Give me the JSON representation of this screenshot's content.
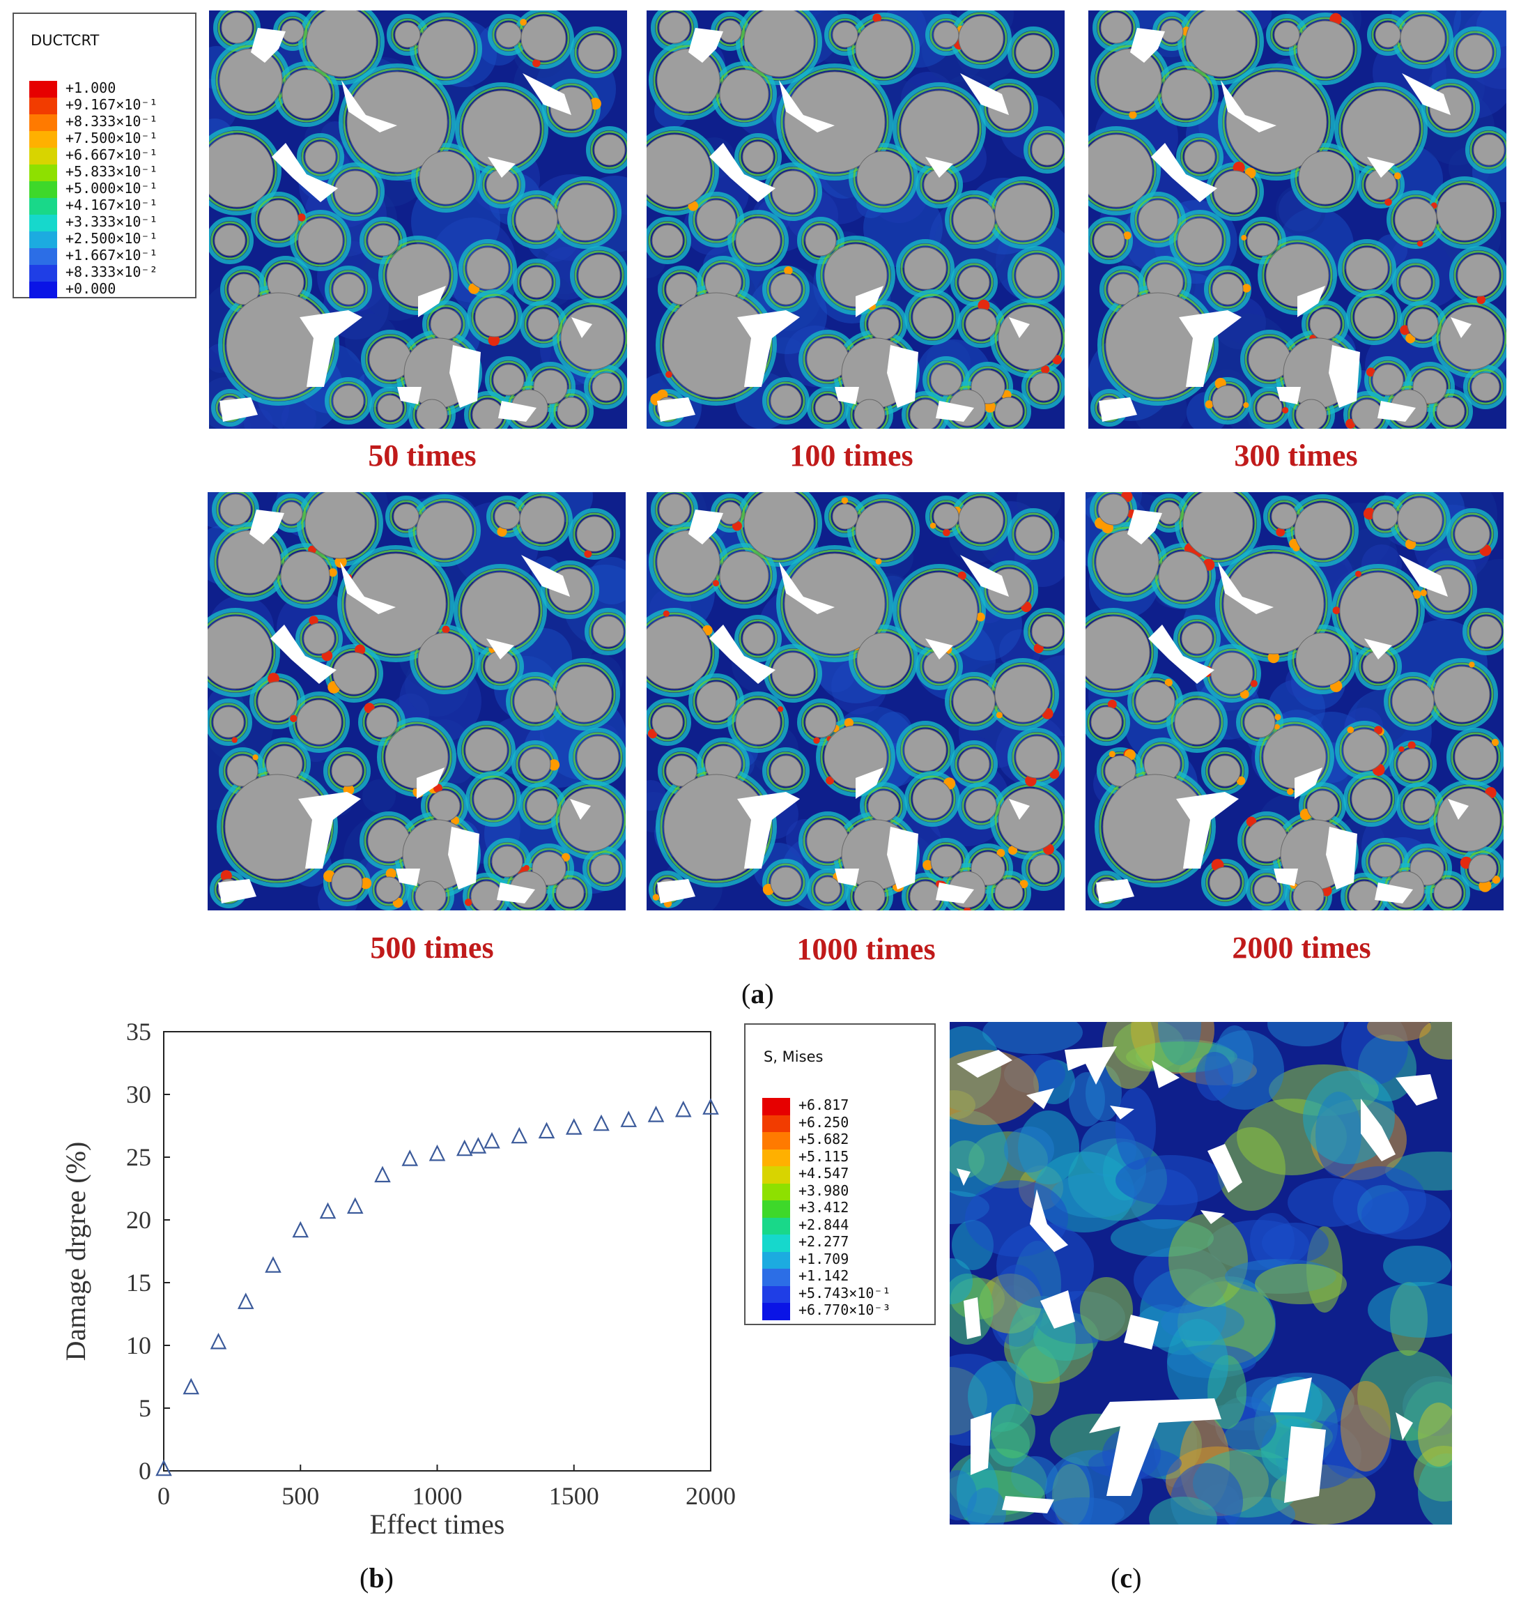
{
  "legend_a": {
    "title": "DUCTCRT",
    "labels": [
      "+1.000",
      "+9.167×10⁻¹",
      "+8.333×10⁻¹",
      "+7.500×10⁻¹",
      "+6.667×10⁻¹",
      "+5.833×10⁻¹",
      "+5.000×10⁻¹",
      "+4.167×10⁻¹",
      "+3.333×10⁻¹",
      "+2.500×10⁻¹",
      "+1.667×10⁻¹",
      "+8.333×10⁻²",
      "+0.000"
    ],
    "colors": [
      "#e60000",
      "#f23c00",
      "#ff7a00",
      "#ffb000",
      "#d8d400",
      "#8ee000",
      "#3ed82a",
      "#19d889",
      "#16d8cc",
      "#1cabe0",
      "#2c6ee6",
      "#1f3ee6",
      "#0a14e6"
    ]
  },
  "panels_a": [
    {
      "caption": "50 times"
    },
    {
      "caption": "100 times"
    },
    {
      "caption": "300 times"
    },
    {
      "caption": "500 times"
    },
    {
      "caption": "1000 times"
    },
    {
      "caption": "2000 times"
    }
  ],
  "sublabels": {
    "a": "a",
    "b": "b",
    "c": "c"
  },
  "chart_data": {
    "type": "scatter",
    "title": "",
    "xlabel": "Effect times",
    "ylabel": "Damage drgree (%)",
    "xlim": [
      0,
      2000
    ],
    "ylim": [
      0,
      35
    ],
    "xticks": [
      "0",
      "500",
      "1000",
      "1500",
      "2000"
    ],
    "yticks": [
      "0",
      "5",
      "10",
      "15",
      "20",
      "25",
      "30",
      "35"
    ],
    "marker": "triangle",
    "series": [
      {
        "name": "damage",
        "x": [
          0,
          100,
          200,
          300,
          400,
          500,
          600,
          700,
          800,
          900,
          1000,
          1100,
          1150,
          1200,
          1300,
          1400,
          1500,
          1600,
          1700,
          1800,
          1900,
          2000
        ],
        "y": [
          0.1,
          6.6,
          10.2,
          13.4,
          16.3,
          19.1,
          20.6,
          21.0,
          23.5,
          24.8,
          25.2,
          25.6,
          25.8,
          26.2,
          26.6,
          27.0,
          27.3,
          27.6,
          27.9,
          28.3,
          28.7,
          28.9
        ]
      }
    ]
  },
  "legend_c": {
    "title": "S, Mises",
    "labels": [
      "+6.817",
      "+6.250",
      "+5.682",
      "+5.115",
      "+4.547",
      "+3.980",
      "+3.412",
      "+2.844",
      "+2.277",
      "+1.709",
      "+1.142",
      "+5.743×10⁻¹",
      "+6.770×10⁻³"
    ],
    "colors": [
      "#e60000",
      "#f23c00",
      "#ff7a00",
      "#ffb000",
      "#d8d400",
      "#8ee000",
      "#3ed82a",
      "#19d889",
      "#16d8cc",
      "#1cabe0",
      "#2c6ee6",
      "#1f3ee6",
      "#0a14e6"
    ]
  }
}
